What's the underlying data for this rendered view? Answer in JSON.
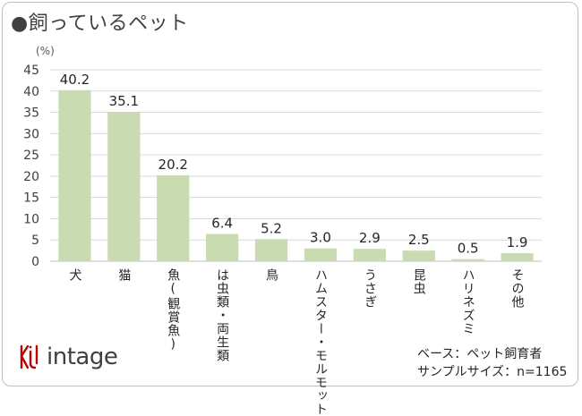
{
  "title": "●飼っているペット",
  "unit_label": "(%)",
  "chart_data": {
    "type": "bar",
    "categories": [
      "犬",
      "猫",
      "魚(観賞魚)",
      "は虫類・両生類",
      "鳥",
      "ハムスター・モルモット",
      "うさぎ",
      "昆虫",
      "ハリネズミ",
      "その他"
    ],
    "values": [
      40.2,
      35.1,
      20.2,
      6.4,
      5.2,
      3.0,
      2.9,
      2.5,
      0.5,
      1.9
    ],
    "value_labels": [
      "40.2",
      "35.1",
      "20.2",
      "6.4",
      "5.2",
      "3.0",
      "2.9",
      "2.5",
      "0.5",
      "1.9"
    ],
    "ylim": [
      0,
      45
    ],
    "yticks": [
      0,
      5,
      10,
      15,
      20,
      25,
      30,
      35,
      40,
      45
    ],
    "grid": true,
    "bar_color": "#c9dbb0"
  },
  "logo": {
    "text": "intage",
    "color": "#c00000"
  },
  "footer": {
    "base": "ベース：ペット飼育者",
    "sample_size": "サンプルサイズ：n=1165"
  }
}
